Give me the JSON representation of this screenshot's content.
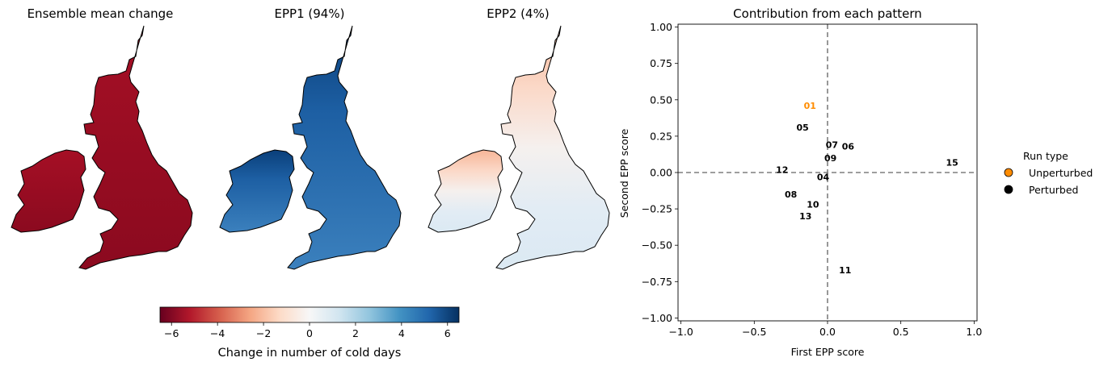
{
  "maps": [
    {
      "title": "Ensemble mean change",
      "scheme": "mean"
    },
    {
      "title": "EPP1 (94%)",
      "scheme": "epp1"
    },
    {
      "title": "EPP2 (4%)",
      "scheme": "epp2"
    }
  ],
  "colorbar": {
    "label": "Change in number of cold days",
    "ticks": [
      "−6",
      "−4",
      "−2",
      "0",
      "2",
      "4",
      "6"
    ],
    "tick_values": [
      -6,
      -4,
      -2,
      0,
      2,
      4,
      6
    ],
    "range": [
      -6.5,
      6.5
    ],
    "colors": [
      "#67001f",
      "#b2182b",
      "#d6604d",
      "#f4a582",
      "#fddbc7",
      "#f7f7f7",
      "#d1e5f0",
      "#92c5de",
      "#4393c3",
      "#2166ac",
      "#053061"
    ]
  },
  "chart_data": {
    "type": "scatter",
    "title": "Contribution from each pattern",
    "xlabel": "First EPP score",
    "ylabel": "Second EPP score",
    "xlim": [
      -1.02,
      1.02
    ],
    "ylim": [
      -1.02,
      1.02
    ],
    "xticks": [
      -1.0,
      -0.5,
      0.0,
      0.5,
      1.0
    ],
    "xtick_labels": [
      "−1.0",
      "−0.5",
      "0.0",
      "0.5",
      "1.0"
    ],
    "yticks": [
      -1.0,
      -0.75,
      -0.5,
      -0.25,
      0.0,
      0.25,
      0.5,
      0.75,
      1.0
    ],
    "ytick_labels": [
      "−1.00",
      "−0.75",
      "−0.50",
      "−0.25",
      "0.00",
      "0.25",
      "0.50",
      "0.75",
      "1.00"
    ],
    "reference_lines": {
      "x": 0,
      "y": 0,
      "style": "dashed",
      "color": "#7f7f7f"
    },
    "points": [
      {
        "label": "01",
        "x": -0.12,
        "y": 0.46,
        "type": "Unperturbed"
      },
      {
        "label": "05",
        "x": -0.17,
        "y": 0.31,
        "type": "Perturbed"
      },
      {
        "label": "07",
        "x": 0.03,
        "y": 0.19,
        "type": "Perturbed"
      },
      {
        "label": "06",
        "x": 0.14,
        "y": 0.18,
        "type": "Perturbed"
      },
      {
        "label": "09",
        "x": 0.02,
        "y": 0.1,
        "type": "Perturbed"
      },
      {
        "label": "12",
        "x": -0.31,
        "y": 0.02,
        "type": "Perturbed"
      },
      {
        "label": "04",
        "x": -0.03,
        "y": -0.03,
        "type": "Perturbed"
      },
      {
        "label": "15",
        "x": 0.85,
        "y": 0.07,
        "type": "Perturbed"
      },
      {
        "label": "08",
        "x": -0.25,
        "y": -0.15,
        "type": "Perturbed"
      },
      {
        "label": "10",
        "x": -0.1,
        "y": -0.22,
        "type": "Perturbed"
      },
      {
        "label": "13",
        "x": -0.15,
        "y": -0.3,
        "type": "Perturbed"
      },
      {
        "label": "11",
        "x": 0.12,
        "y": -0.67,
        "type": "Perturbed"
      }
    ],
    "legend": {
      "title": "Run type",
      "placement": "outside-right",
      "entries": [
        {
          "label": "Unperturbed",
          "color": "#ff8c00"
        },
        {
          "label": "Perturbed",
          "color": "#000000"
        }
      ]
    }
  }
}
